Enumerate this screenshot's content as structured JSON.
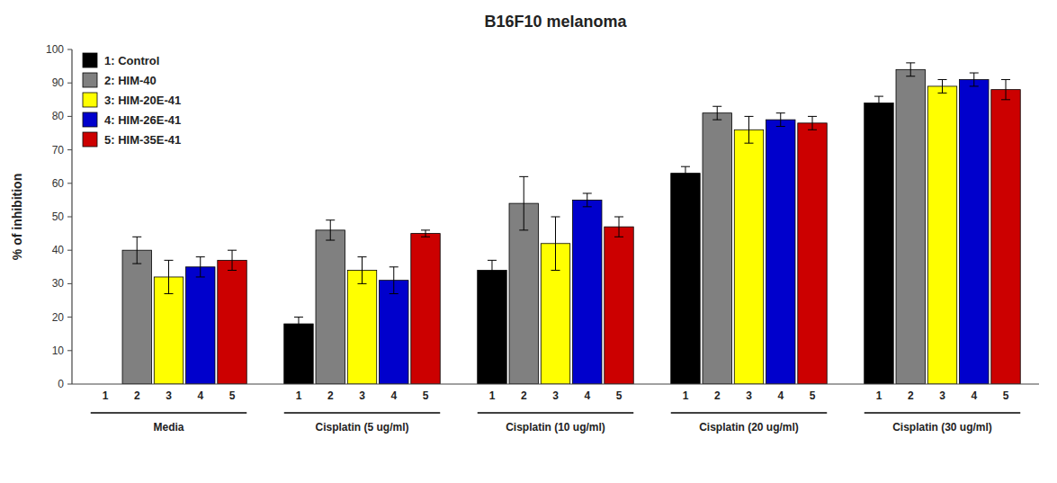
{
  "chart_data": {
    "type": "bar",
    "title": "B16F10 melanoma",
    "ylabel": "% of inhibition",
    "categories": [
      "Media",
      "Cisplatin (5 ug/ml)",
      "Cisplatin (10 ug/ml)",
      "Cisplatin (20 ug/ml)",
      "Cisplatin (30 ug/ml)"
    ],
    "sub_categories": [
      "1",
      "2",
      "3",
      "4",
      "5"
    ],
    "series": [
      {
        "name": "1: Control",
        "color": "#000000",
        "values": [
          0,
          18,
          34,
          63,
          84
        ],
        "errors": [
          0,
          2,
          3,
          2,
          2
        ]
      },
      {
        "name": "2: HIM-40",
        "color": "#808080",
        "values": [
          40,
          46,
          54,
          81,
          94
        ],
        "errors": [
          4,
          3,
          8,
          2,
          2
        ]
      },
      {
        "name": "3: HIM-20E-41",
        "color": "#ffff00",
        "values": [
          32,
          34,
          42,
          76,
          89
        ],
        "errors": [
          5,
          4,
          8,
          4,
          2
        ]
      },
      {
        "name": "4: HIM-26E-41",
        "color": "#0000cc",
        "values": [
          35,
          31,
          55,
          79,
          91
        ],
        "errors": [
          3,
          4,
          2,
          2,
          2
        ]
      },
      {
        "name": "5: HIM-35E-41",
        "color": "#cc0000",
        "values": [
          37,
          45,
          47,
          78,
          88
        ],
        "errors": [
          3,
          1,
          3,
          2,
          3
        ]
      }
    ],
    "ylim": [
      0,
      100
    ],
    "yticks": [
      0,
      10,
      20,
      30,
      40,
      50,
      60,
      70,
      80,
      90,
      100
    ],
    "grid": false,
    "legend": "upper left"
  }
}
